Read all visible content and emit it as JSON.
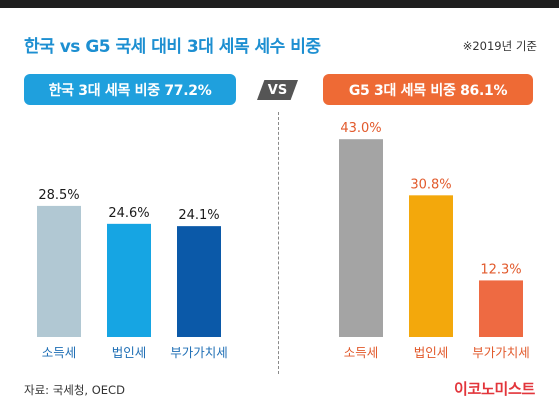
{
  "title": "한국 vs G5 국세 대비 3대 세목 세수 비중",
  "year_note": "※2019년 기준",
  "vs_label": "VS",
  "source": "자료: 국세청, OECD",
  "brand": "이코노미스트",
  "colors": {
    "title": "#1d8fd1",
    "korea_pill": "#1fa0dd",
    "g5_pill": "#ee6a35",
    "brand": "#e2353b"
  },
  "chart_data": [
    {
      "type": "bar",
      "panel_label": "한국 3대 세목 비중 77.2%",
      "categories": [
        "소득세",
        "법인세",
        "부가가치세"
      ],
      "values": [
        28.5,
        24.6,
        24.1
      ],
      "value_labels": [
        "28.5%",
        "24.6%",
        "24.1%"
      ],
      "colors": [
        "#b1c8d3",
        "#16a5e3",
        "#0b59a8"
      ],
      "label_color": "#1f6fb5",
      "ylim": [
        0,
        45
      ]
    },
    {
      "type": "bar",
      "panel_label": "G5 3대 세목 비중 86.1%",
      "categories": [
        "소득세",
        "법인세",
        "부가가치세"
      ],
      "values": [
        43.0,
        30.8,
        12.3
      ],
      "value_labels": [
        "43.0%",
        "30.8%",
        "12.3%"
      ],
      "colors": [
        "#a4a4a4",
        "#f3a80c",
        "#ee6a42"
      ],
      "label_color": "#e25a2c",
      "ylim": [
        0,
        45
      ]
    }
  ]
}
